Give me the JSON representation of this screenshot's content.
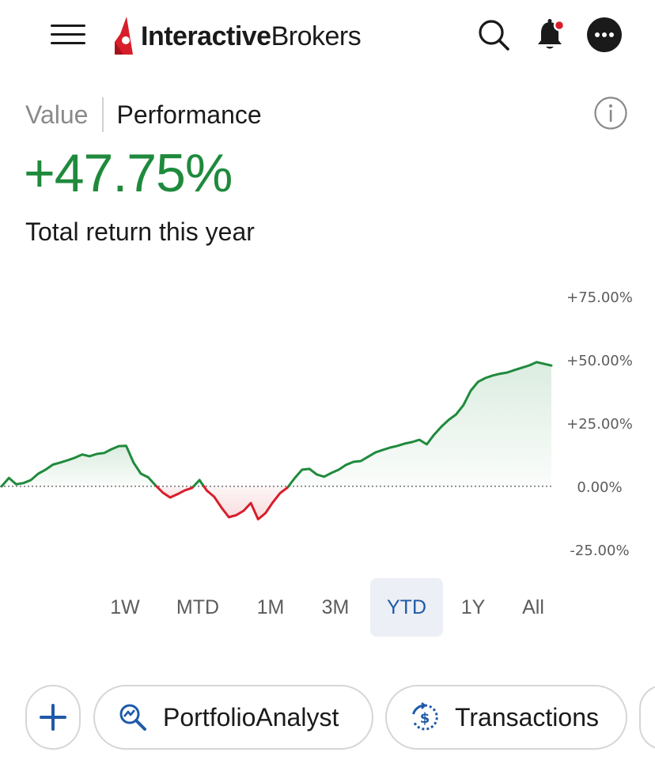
{
  "header": {
    "logo_bold": "Interactive",
    "logo_light": "Brokers",
    "brand_color": "#d81e2a",
    "icons": [
      "menu-icon",
      "search-icon",
      "bell-icon",
      "more-icon"
    ]
  },
  "toggle": {
    "value_label": "Value",
    "performance_label": "Performance",
    "selected": "Performance"
  },
  "performance": {
    "value": "+47.75%",
    "caption": "Total return this year",
    "positive_color": "#1f8a3c",
    "negative_color": "#d81e2a"
  },
  "chart_data": {
    "type": "line",
    "y_tick_labels": [
      "+75.00%",
      "+50.00%",
      "+25.00%",
      "0.00%",
      "-25.00%"
    ],
    "ylim": [
      -25,
      75
    ],
    "baseline": 0,
    "grid": false,
    "series": [
      {
        "values": [
          0,
          3.3,
          0.8,
          1.3,
          2.5,
          5,
          6.6,
          8.6,
          9.4,
          10.3,
          11.3,
          12.6,
          11.9,
          12.8,
          13.2,
          14.7,
          15.9,
          16,
          9.4,
          5,
          3.6,
          0.4,
          -2.5,
          -4.4,
          -3.1,
          -1.6,
          -0.6,
          2.5,
          -1.7,
          -4.1,
          -8.4,
          -12.2,
          -11.4,
          -9.7,
          -6.6,
          -13,
          -10.6,
          -6.3,
          -2.7,
          -0.5,
          3.3,
          6.6,
          6.9,
          4.7,
          3.8,
          5.3,
          6.6,
          8.5,
          9.7,
          10,
          11.7,
          13.4,
          14.4,
          15.3,
          16,
          16.9,
          17.5,
          18.4,
          16.6,
          20.4,
          23.6,
          26.3,
          28.4,
          32.1,
          37.8,
          41.3,
          42.8,
          43.8,
          44.5,
          45,
          46,
          46.9,
          47.8,
          49.1,
          48.4,
          47.75
        ]
      }
    ]
  },
  "ranges": {
    "items": [
      "1W",
      "MTD",
      "1M",
      "3M",
      "YTD",
      "1Y",
      "All"
    ],
    "selected": "YTD"
  },
  "chips": {
    "add_icon": "plus-icon",
    "portfolio_label": "PortfolioAnalyst",
    "portfolio_icon": "analyze-icon",
    "transactions_label": "Transactions",
    "transactions_icon": "dollar-cycle-icon",
    "accent_color": "#1e5aa8"
  }
}
